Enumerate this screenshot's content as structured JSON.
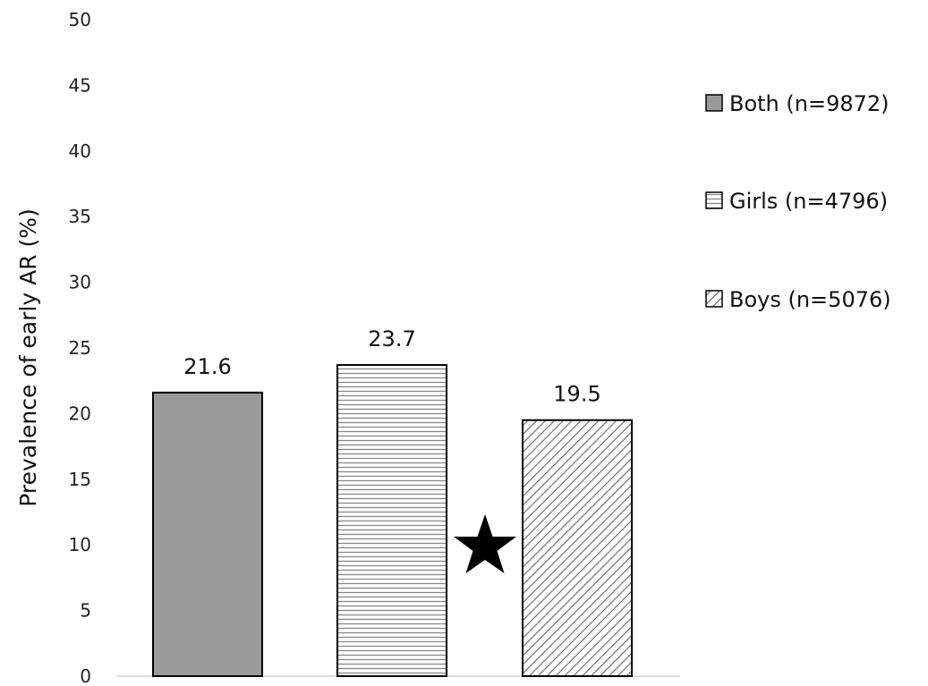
{
  "chart_data": {
    "type": "bar",
    "categories": [
      "Both (n=9872)",
      "Girls (n=4796)",
      "Boys (n=5076)"
    ],
    "values": [
      21.6,
      23.7,
      19.5
    ],
    "data_labels": [
      "21.6",
      "23.7",
      "19.5"
    ],
    "ylabel": "Prevalence of early AR (%)",
    "xlabel": "",
    "ylim": [
      0,
      50
    ],
    "yticks": [
      "0",
      "5",
      "10",
      "15",
      "20",
      "25",
      "30",
      "35",
      "40",
      "45",
      "50"
    ],
    "grid": false,
    "legend": {
      "position": "right",
      "items": [
        "Both (n=9872)",
        "Girls (n=4796)",
        "Boys (n=5076)"
      ]
    },
    "fills": [
      "solid-gray",
      "horizontal-stripes",
      "diagonal-stripes"
    ],
    "colors": {
      "both": "#9a9a9a",
      "stripe": "#888888",
      "border": "#000000"
    },
    "annotation": "star-icon"
  }
}
